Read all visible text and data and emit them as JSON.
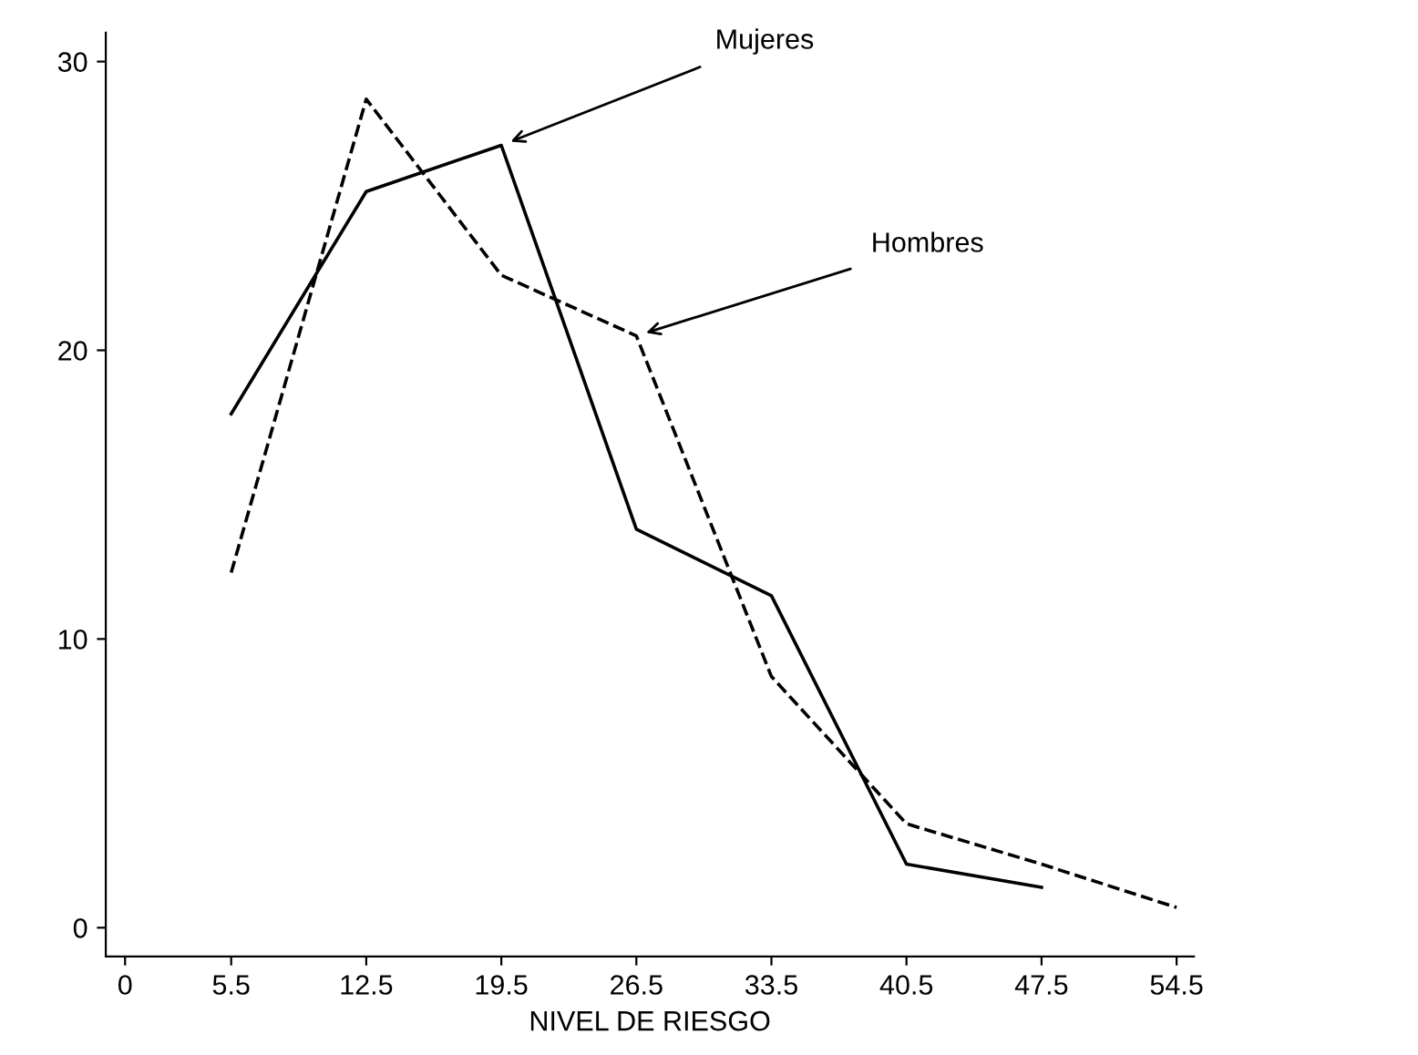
{
  "chart_data": {
    "type": "line",
    "xlabel": "NIVEL DE RIESGO",
    "x": [
      5.5,
      12.5,
      19.5,
      26.5,
      33.5,
      40.5,
      47.5,
      54.5
    ],
    "series": [
      {
        "color": "#000000",
        "line_style": "solid",
        "values": [
          17.8,
          25.5,
          27.1,
          13.8,
          11.5,
          2.2,
          1.4,
          null
        ]
      },
      {
        "color": "#000000",
        "line_style": "dashed",
        "values": [
          12.3,
          28.7,
          22.6,
          20.5,
          8.7,
          3.6,
          2.2,
          0.7
        ]
      }
    ],
    "annotations": [
      {
        "text": "Mujeres",
        "x": 19.5,
        "y": 27.1
      },
      {
        "text": "Hombres",
        "x": 26.5,
        "y": 20.5
      }
    ],
    "xlim": [
      -1.0,
      55.4
    ],
    "ylim": [
      -1.0,
      31.0
    ],
    "xticks": [
      0,
      5.5,
      12.5,
      19.5,
      26.5,
      33.5,
      40.5,
      47.5,
      54.5
    ],
    "yticks": [
      0,
      10,
      20,
      30
    ],
    "grid": false,
    "marker": "none"
  }
}
